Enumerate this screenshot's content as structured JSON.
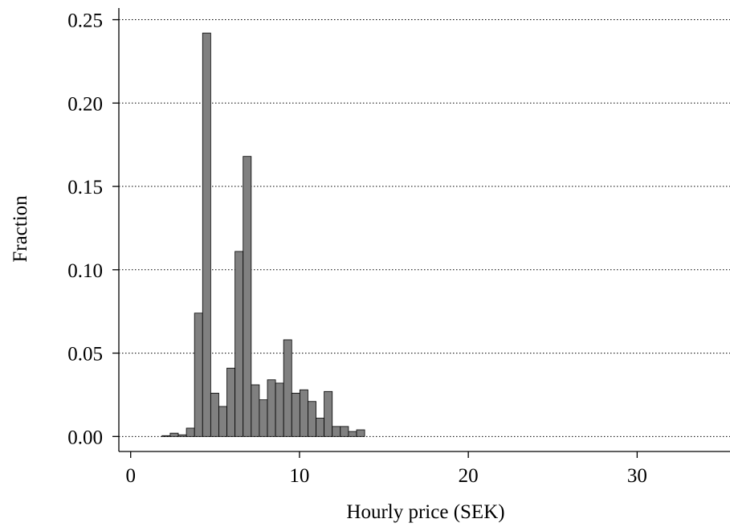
{
  "chart_data": {
    "type": "histogram",
    "xlabel": "Hourly price (SEK)",
    "ylabel": "Fraction",
    "bins": [
      1.86,
      2.34,
      2.82,
      3.3,
      3.78,
      4.26,
      4.74,
      5.22,
      5.7,
      6.18,
      6.66,
      7.14,
      7.62,
      8.1,
      8.58,
      9.06,
      9.54,
      10.02,
      10.5,
      10.98,
      11.46,
      11.94,
      12.42,
      12.9,
      13.38,
      13.86
    ],
    "values": [
      0.0005,
      0.002,
      0.001,
      0.005,
      0.074,
      0.242,
      0.026,
      0.018,
      0.041,
      0.111,
      0.168,
      0.031,
      0.022,
      0.034,
      0.032,
      0.058,
      0.026,
      0.028,
      0.021,
      0.011,
      0.027,
      0.006,
      0.006,
      0.003,
      0.004
    ],
    "color": "#808080",
    "xlim": [
      -0.7,
      35.5
    ],
    "ylim": [
      -0.009,
      0.257
    ],
    "xticks": [
      0,
      10,
      20,
      30
    ],
    "yticks": [
      {
        "value": 0,
        "label": "0.00"
      },
      0.05,
      {
        "value": 0.1,
        "label": "0.10"
      },
      0.15,
      {
        "value": 0.2,
        "label": "0.20"
      },
      0.25
    ],
    "grid": true
  }
}
